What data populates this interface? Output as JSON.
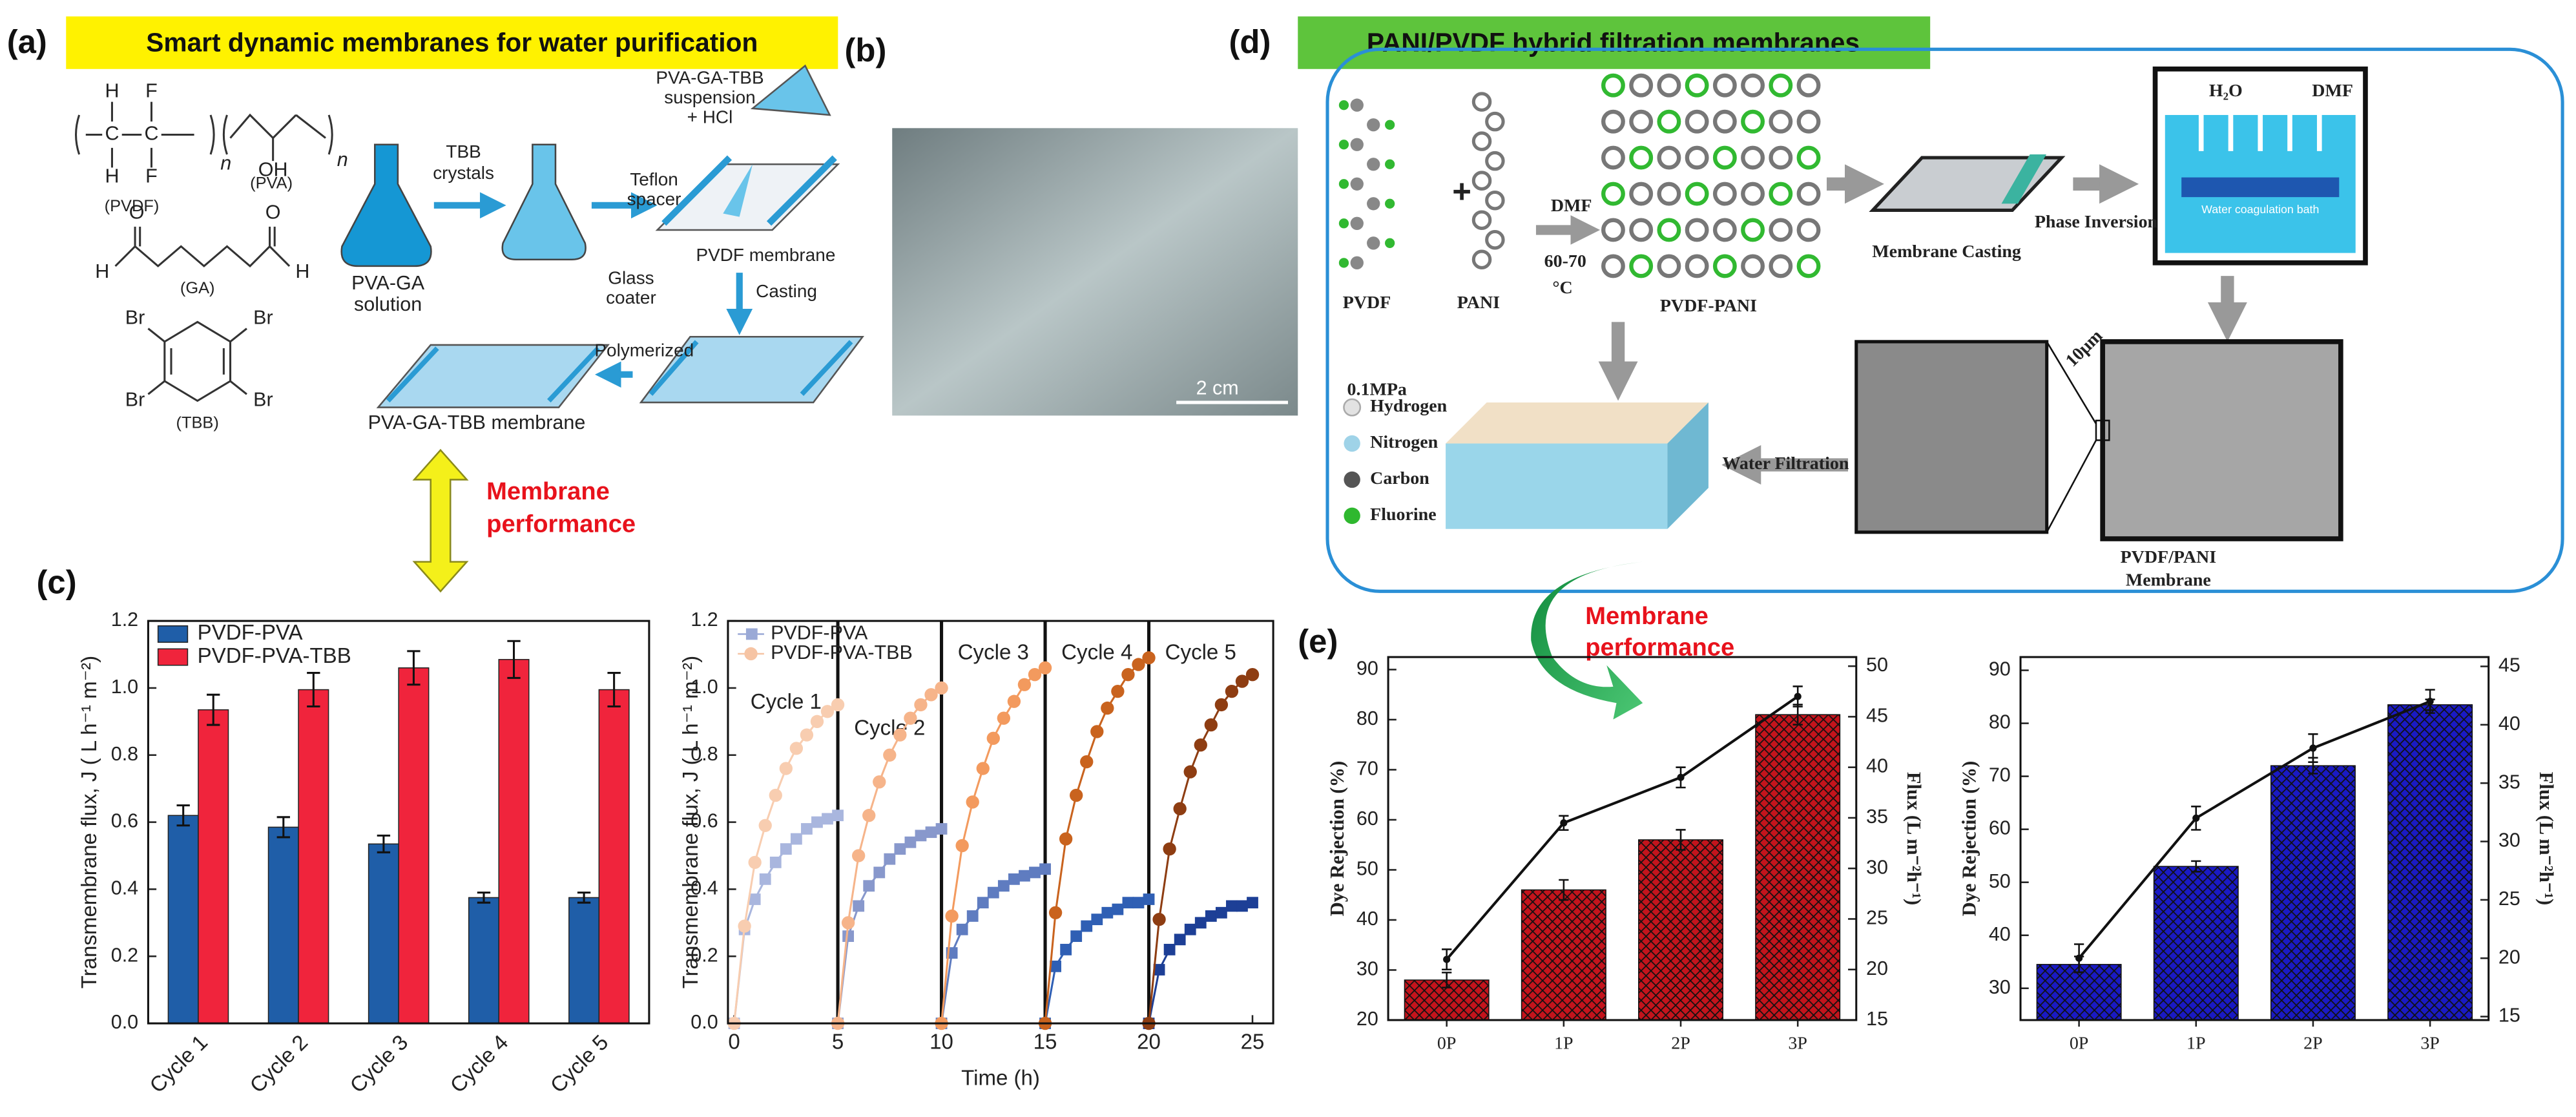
{
  "panel_labels": [
    "(a)",
    "(b)",
    "(c)",
    "(d)",
    "(e)"
  ],
  "a": {
    "title": "Smart dynamic membranes for water purification",
    "atoms": [
      "H",
      "F",
      "C",
      "C",
      "H",
      "F",
      "n",
      "OH",
      "n",
      "O",
      "O",
      "H",
      "H",
      "Br",
      "Br",
      "Br",
      "Br"
    ],
    "compounds": [
      "(PVDF)",
      "(PVA)",
      "(GA)",
      "(TBB)"
    ],
    "tbb": [
      "TBB",
      "crystals"
    ],
    "solution": [
      "PVA-GA",
      "solution"
    ],
    "suspension": [
      "PVA-GA-TBB",
      "suspension",
      "+ HCl"
    ],
    "spacer": [
      "Teflon",
      "spacer"
    ],
    "coater": [
      "Glass",
      "coater"
    ],
    "pvdf": "PVDF membrane",
    "casting": "Casting",
    "polymerized": "Polymerized",
    "product": "PVA-GA-TBB membrane",
    "performance": [
      "Membrane",
      "performance"
    ]
  },
  "b": {
    "scale_bar": "2 cm"
  },
  "d": {
    "title": "PANI/PVDF hybrid filtration membranes",
    "pvdf": "PVDF",
    "pani": "PANI",
    "dmf": "DMF",
    "temp": [
      "60-70",
      "°C"
    ],
    "network": "PVDF-PANI",
    "casting": "Membrane Casting",
    "inversion": "Phase Inversion",
    "h2o": "H₂O",
    "dmf2": "DMF",
    "bath": "Water coagulation bath",
    "pressure": "0.1MPa",
    "legend": [
      "Hydrogen",
      "Nitrogen",
      "Carbon",
      "Fluorine"
    ],
    "filtration": "Water Filtration",
    "scale": "10μm",
    "membrane": [
      "PVDF/PANI",
      "Membrane"
    ]
  },
  "e_note": [
    "Membrane",
    "performance"
  ],
  "chart_data": [
    {
      "type": "bar",
      "y_label": "Transmembrane flux, J ( L h⁻¹ m⁻²)",
      "categories": [
        "Cycle 1",
        "Cycle 2",
        "Cycle 3",
        "Cycle 4",
        "Cycle 5"
      ],
      "series": [
        {
          "name": "PVDF-PVA",
          "color": "#1f5ea8",
          "values": [
            0.62,
            0.585,
            0.535,
            0.375,
            0.375
          ],
          "errors": [
            0.03,
            0.03,
            0.025,
            0.015,
            0.015
          ]
        },
        {
          "name": "PVDF-PVA-TBB",
          "color": "#f0243c",
          "values": [
            0.935,
            0.995,
            1.06,
            1.085,
            0.995
          ],
          "errors": [
            0.045,
            0.05,
            0.05,
            0.055,
            0.05
          ]
        }
      ],
      "ylim": [
        0,
        1.2
      ],
      "yticks": [
        {
          "value": 0,
          "label": "0.0"
        },
        0.2,
        0.4,
        0.6,
        0.8,
        {
          "value": 1,
          "label": "1.0"
        },
        1.2
      ],
      "legend": "upper left"
    },
    {
      "type": "line",
      "x_label": "Time (h)",
      "y_label": "Transmembrane flux, J ( L h⁻¹ m⁻²)",
      "annotations": [
        "Cycle 1",
        "Cycle 2",
        "Cycle 3",
        "Cycle 4",
        "Cycle 5"
      ],
      "cycle_boundaries": [
        5,
        10,
        15,
        20
      ],
      "series": [
        {
          "name": "PVDF-PVA",
          "marker": "square",
          "color": "#9aa9d6",
          "cycle_colors": [
            "#a9b6de",
            "#8898cc",
            "#5f7cc0",
            "#2f5fb4",
            "#1d3f96"
          ],
          "x": [
            0,
            0.5,
            1,
            1.5,
            2,
            2.5,
            3,
            3.5,
            4,
            4.5,
            5,
            5,
            5.5,
            6,
            6.5,
            7,
            7.5,
            8,
            8.5,
            9,
            9.5,
            10,
            10,
            10.5,
            11,
            11.5,
            12,
            12.5,
            13,
            13.5,
            14,
            14.5,
            15,
            15,
            15.5,
            16,
            16.5,
            17,
            17.5,
            18,
            18.5,
            19,
            19.5,
            20,
            20,
            20.5,
            21,
            21.5,
            22,
            22.5,
            23,
            23.5,
            24,
            24.5,
            25
          ],
          "values": [
            0,
            0.28,
            0.37,
            0.43,
            0.48,
            0.52,
            0.55,
            0.58,
            0.6,
            0.61,
            0.62,
            0,
            0.26,
            0.35,
            0.41,
            0.45,
            0.49,
            0.52,
            0.54,
            0.56,
            0.57,
            0.58,
            0,
            0.21,
            0.28,
            0.32,
            0.36,
            0.39,
            0.41,
            0.43,
            0.44,
            0.45,
            0.46,
            0,
            0.17,
            0.22,
            0.26,
            0.29,
            0.31,
            0.33,
            0.34,
            0.36,
            0.36,
            0.37,
            0,
            0.16,
            0.22,
            0.25,
            0.28,
            0.3,
            0.32,
            0.33,
            0.35,
            0.35,
            0.36
          ]
        },
        {
          "name": "PVDF-PVA-TBB",
          "marker": "circle",
          "color": "#f6c4a4",
          "cycle_colors": [
            "#f8cdb0",
            "#f6b48a",
            "#f39a5e",
            "#c9631e",
            "#8e3d12"
          ],
          "x": [
            0,
            0.5,
            1,
            1.5,
            2,
            2.5,
            3,
            3.5,
            4,
            4.5,
            5,
            5,
            5.5,
            6,
            6.5,
            7,
            7.5,
            8,
            8.5,
            9,
            9.5,
            10,
            10,
            10.5,
            11,
            11.5,
            12,
            12.5,
            13,
            13.5,
            14,
            14.5,
            15,
            15,
            15.5,
            16,
            16.5,
            17,
            17.5,
            18,
            18.5,
            19,
            19.5,
            20,
            20,
            20.5,
            21,
            21.5,
            22,
            22.5,
            23,
            23.5,
            24,
            24.5,
            25
          ],
          "values": [
            0,
            0.29,
            0.48,
            0.59,
            0.68,
            0.76,
            0.82,
            0.86,
            0.9,
            0.93,
            0.95,
            0,
            0.3,
            0.5,
            0.62,
            0.72,
            0.8,
            0.86,
            0.91,
            0.95,
            0.98,
            1.0,
            0,
            0.32,
            0.53,
            0.66,
            0.76,
            0.85,
            0.91,
            0.96,
            1.01,
            1.04,
            1.06,
            0,
            0.33,
            0.55,
            0.68,
            0.78,
            0.87,
            0.94,
            0.99,
            1.04,
            1.07,
            1.09,
            0,
            0.31,
            0.52,
            0.64,
            0.75,
            0.83,
            0.89,
            0.95,
            0.99,
            1.02,
            1.04
          ]
        }
      ],
      "xlim": [
        -0.3,
        26
      ],
      "xticks": [
        0,
        5,
        10,
        15,
        20,
        25
      ],
      "ylim": [
        0,
        1.2
      ],
      "yticks": [
        {
          "value": 0,
          "label": "0.0"
        },
        0.2,
        0.4,
        0.6,
        0.8,
        {
          "value": 1,
          "label": "1.0"
        },
        1.2
      ],
      "legend": "upper left"
    },
    {
      "type": "bar_line",
      "y_label": "Dye Rejection (%)",
      "y2_label": "Flux (L m⁻²h⁻¹)",
      "categories": [
        "0P",
        "1P",
        "2P",
        "3P"
      ],
      "hatch": true,
      "series": [
        {
          "kind": "bar",
          "color": "#c4141c",
          "values": [
            28,
            46,
            56,
            81
          ],
          "errors": [
            1.5,
            2,
            2,
            2
          ]
        },
        {
          "kind": "line",
          "axis": "y2",
          "color": "#111111",
          "values": [
            21,
            34.5,
            39,
            47
          ],
          "errors": [
            1,
            0.7,
            1,
            1
          ]
        }
      ],
      "ylim": [
        20,
        92.5
      ],
      "yticks": [
        20,
        30,
        40,
        50,
        60,
        70,
        80,
        90
      ],
      "y2lim": [
        15,
        50.9
      ],
      "y2ticks": [
        15,
        20,
        25,
        30,
        35,
        40,
        45,
        50
      ]
    },
    {
      "type": "bar_line",
      "y_label": "Dye Rejection (%)",
      "y2_label": "Flux (L m⁻²h⁻¹)",
      "categories": [
        "0P",
        "1P",
        "2P",
        "3P"
      ],
      "hatch": true,
      "series": [
        {
          "kind": "bar",
          "color": "#1a1ac4",
          "values": [
            34.5,
            53,
            72,
            83.5
          ],
          "errors": [
            1.5,
            1,
            1.5,
            1
          ]
        },
        {
          "kind": "line",
          "axis": "y2",
          "color": "#111111",
          "values": [
            20,
            32,
            38,
            42
          ],
          "errors": [
            1.2,
            1,
            1.2,
            1
          ]
        }
      ],
      "ylim": [
        24,
        92.5
      ],
      "yticks": [
        30,
        40,
        50,
        60,
        70,
        80,
        90
      ],
      "y2lim": [
        14.7,
        45.8
      ],
      "y2ticks": [
        15,
        20,
        25,
        30,
        35,
        40,
        45
      ]
    }
  ]
}
